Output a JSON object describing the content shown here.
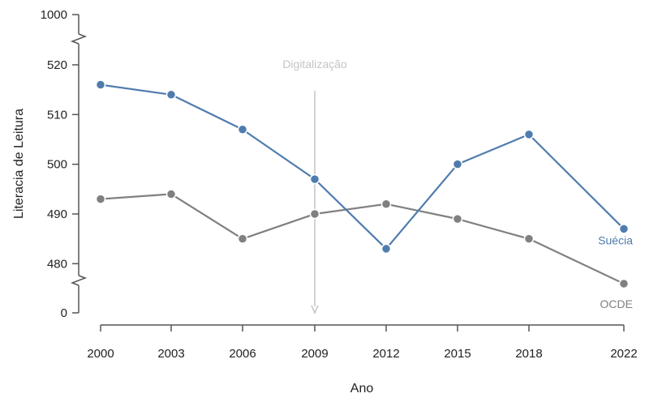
{
  "chart_data": {
    "type": "line",
    "xlabel": "Ano",
    "ylabel": "Literacia de Leitura",
    "x": [
      2000,
      2003,
      2006,
      2009,
      2012,
      2015,
      2018,
      2022
    ],
    "y_ticks": [
      "0",
      "480",
      "490",
      "500",
      "510",
      "520",
      "1000"
    ],
    "y_axis_break": {
      "visible_range": [
        480,
        520
      ],
      "lower_extra_tick": 0,
      "upper_extra_tick": 1000
    },
    "series": [
      {
        "name": "Suécia",
        "color": "#4f7cae",
        "values": [
          516,
          514,
          507,
          497,
          483,
          500,
          506,
          487
        ]
      },
      {
        "name": "OCDE",
        "color": "#808080",
        "values": [
          493,
          494,
          485,
          490,
          492,
          489,
          485,
          476
        ]
      }
    ],
    "annotations": [
      {
        "label": "Digitalização",
        "x": 2009,
        "type": "vertical-arrow",
        "color": "#c4c4c4"
      }
    ],
    "grid": false,
    "legend": "direct-labels-right"
  }
}
